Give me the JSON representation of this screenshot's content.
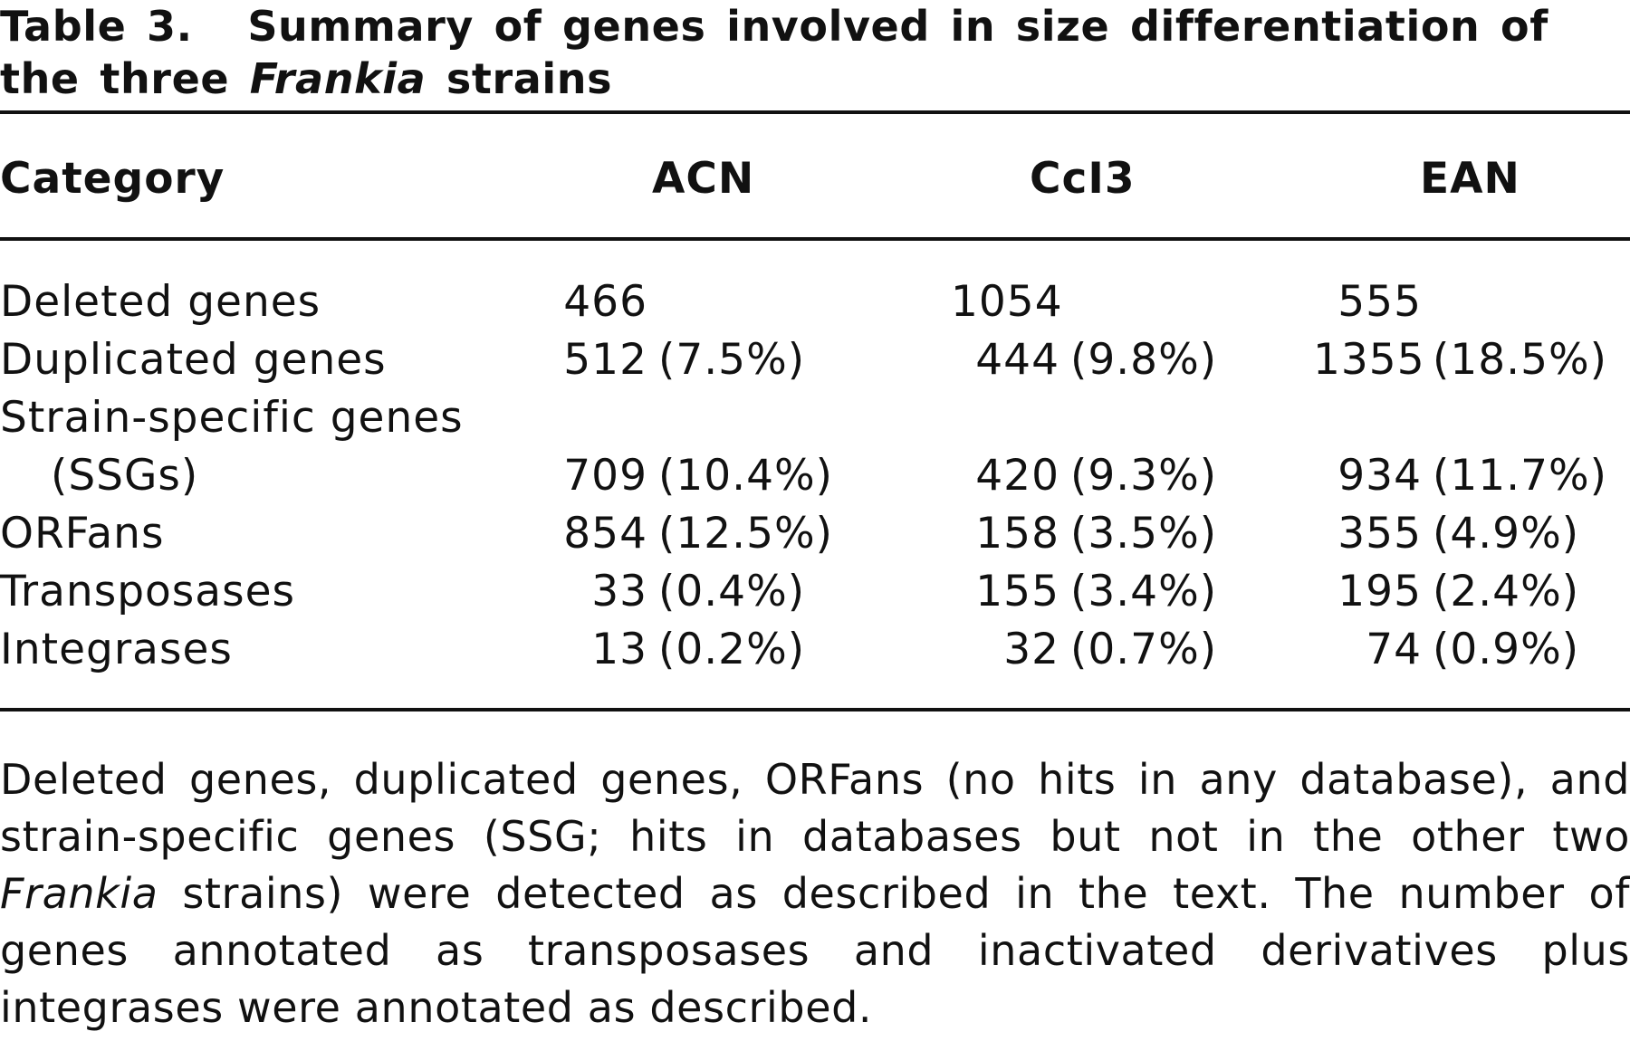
{
  "title": {
    "label": "Table 3.",
    "text_before": "Summary of genes involved in size differentiation of the three",
    "text_italic": "Frankia",
    "text_after": "strains"
  },
  "table": {
    "headers": [
      "Category",
      "ACN",
      "CcI3",
      "EAN"
    ],
    "rows": [
      {
        "category": "Deleted genes",
        "acn": {
          "n": "466",
          "pct": ""
        },
        "cci3": {
          "n": "1054",
          "pct": ""
        },
        "ean": {
          "n": "555",
          "pct": ""
        }
      },
      {
        "category": "Duplicated genes",
        "acn": {
          "n": "512",
          "pct": "(7.5%)"
        },
        "cci3": {
          "n": "444",
          "pct": "(9.8%)"
        },
        "ean": {
          "n": "1355",
          "pct": "(18.5%)"
        }
      },
      {
        "category_line1": "Strain-specific genes",
        "category": "(SSGs)",
        "acn": {
          "n": "709",
          "pct": "(10.4%)"
        },
        "cci3": {
          "n": "420",
          "pct": "(9.3%)"
        },
        "ean": {
          "n": "934",
          "pct": "(11.7%)"
        }
      },
      {
        "category": "ORFans",
        "acn": {
          "n": "854",
          "pct": "(12.5%)"
        },
        "cci3": {
          "n": "158",
          "pct": "(3.5%)"
        },
        "ean": {
          "n": "355",
          "pct": "(4.9%)"
        }
      },
      {
        "category": "Transposases",
        "acn": {
          "n": "33",
          "pct": "(0.4%)"
        },
        "cci3": {
          "n": "155",
          "pct": "(3.4%)"
        },
        "ean": {
          "n": "195",
          "pct": "(2.4%)"
        }
      },
      {
        "category": "Integrases",
        "acn": {
          "n": "13",
          "pct": "(0.2%)"
        },
        "cci3": {
          "n": "32",
          "pct": "(0.7%)"
        },
        "ean": {
          "n": "74",
          "pct": "(0.9%)"
        }
      }
    ]
  },
  "caption": {
    "part1": "Deleted genes, duplicated genes, ORFans (no hits in any database), and strain-specific genes (SSG; hits in databases but not in the other two",
    "italic": "Frankia",
    "part2": "strains) were detected as described in the text. The number of genes annotated as transposases and inactivated derivatives plus integrases were annotated as described."
  }
}
